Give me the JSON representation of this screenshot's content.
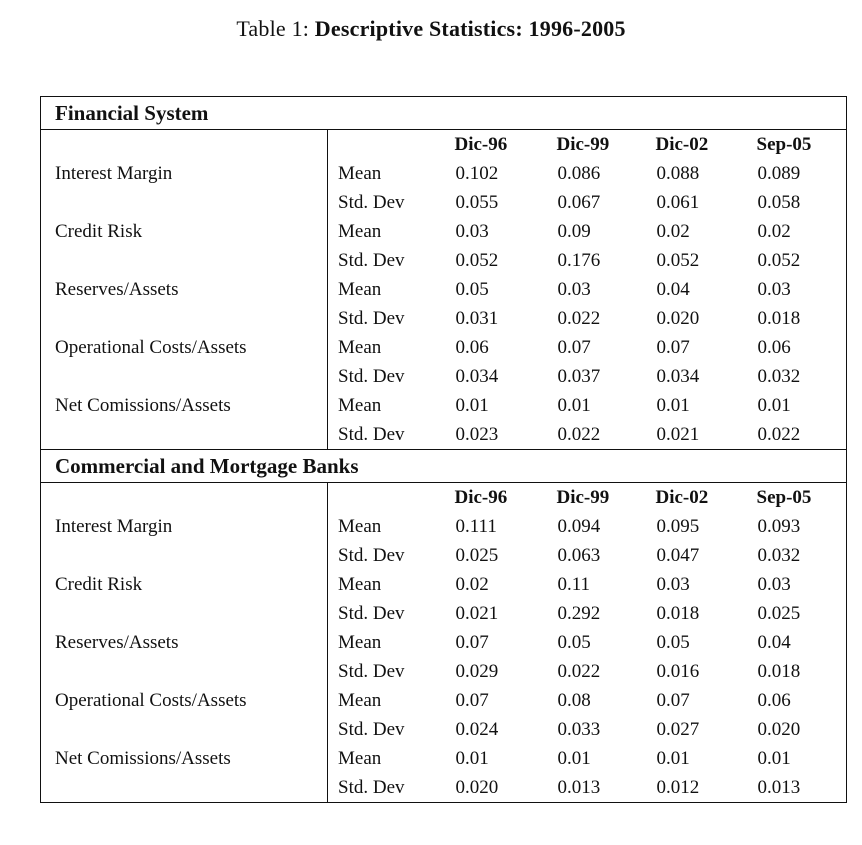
{
  "caption": {
    "prefix": "Table 1: ",
    "title": "Descriptive Statistics: 1996-2005"
  },
  "columns": [
    "Dic-96",
    "Dic-99",
    "Dic-02",
    "Sep-05"
  ],
  "stat_labels": {
    "mean": "Mean",
    "std": "Std. Dev"
  },
  "colors": {
    "text": "#111111",
    "border": "#111111",
    "background": "#ffffff"
  },
  "sections": [
    {
      "title": "Financial System",
      "rows": [
        {
          "label": "Interest Margin",
          "mean": [
            "0.102",
            "0.086",
            "0.088",
            "0.089"
          ],
          "std": [
            "0.055",
            "0.067",
            "0.061",
            "0.058"
          ]
        },
        {
          "label": "Credit Risk",
          "mean": [
            "0.03",
            "0.09",
            "0.02",
            "0.02"
          ],
          "std": [
            "0.052",
            "0.176",
            "0.052",
            "0.052"
          ]
        },
        {
          "label": "Reserves/Assets",
          "mean": [
            "0.05",
            "0.03",
            "0.04",
            "0.03"
          ],
          "std": [
            "0.031",
            "0.022",
            "0.020",
            "0.018"
          ]
        },
        {
          "label": "Operational Costs/Assets",
          "mean": [
            "0.06",
            "0.07",
            "0.07",
            "0.06"
          ],
          "std": [
            "0.034",
            "0.037",
            "0.034",
            "0.032"
          ]
        },
        {
          "label": "Net Comissions/Assets",
          "mean": [
            "0.01",
            "0.01",
            "0.01",
            "0.01"
          ],
          "std": [
            "0.023",
            "0.022",
            "0.021",
            "0.022"
          ]
        }
      ]
    },
    {
      "title": "Commercial and Mortgage Banks",
      "rows": [
        {
          "label": "Interest Margin",
          "mean": [
            "0.111",
            "0.094",
            "0.095",
            "0.093"
          ],
          "std": [
            "0.025",
            "0.063",
            "0.047",
            "0.032"
          ]
        },
        {
          "label": "Credit Risk",
          "mean": [
            "0.02",
            "0.11",
            "0.03",
            "0.03"
          ],
          "std": [
            "0.021",
            "0.292",
            "0.018",
            "0.025"
          ]
        },
        {
          "label": "Reserves/Assets",
          "mean": [
            "0.07",
            "0.05",
            "0.05",
            "0.04"
          ],
          "std": [
            "0.029",
            "0.022",
            "0.016",
            "0.018"
          ]
        },
        {
          "label": "Operational Costs/Assets",
          "mean": [
            "0.07",
            "0.08",
            "0.07",
            "0.06"
          ],
          "std": [
            "0.024",
            "0.033",
            "0.027",
            "0.020"
          ]
        },
        {
          "label": "Net Comissions/Assets",
          "mean": [
            "0.01",
            "0.01",
            "0.01",
            "0.01"
          ],
          "std": [
            "0.020",
            "0.013",
            "0.012",
            "0.013"
          ]
        }
      ]
    }
  ]
}
